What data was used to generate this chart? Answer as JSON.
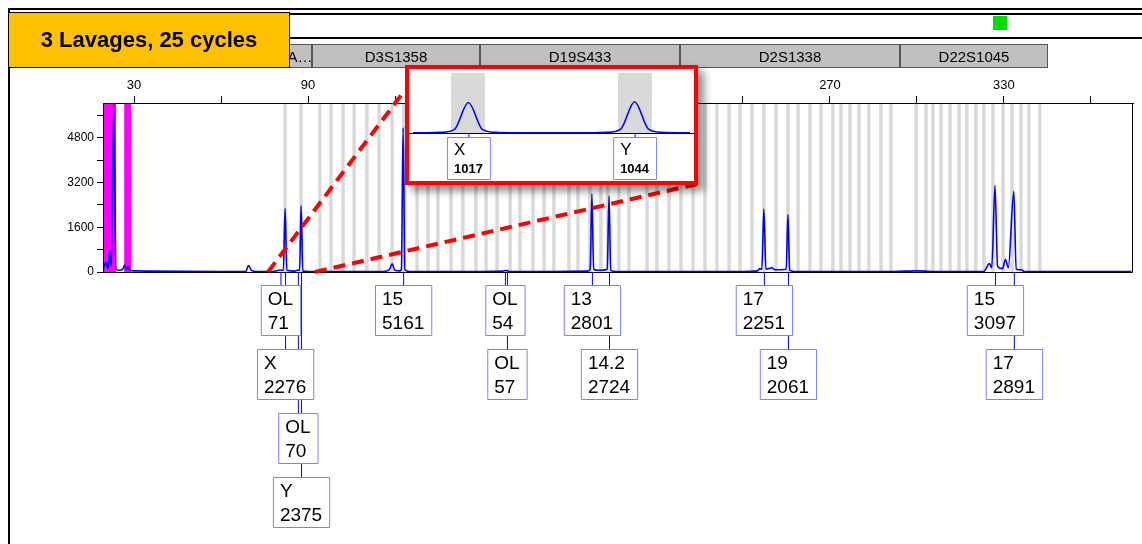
{
  "chart_data": [
    {
      "type": "line",
      "title": "3 Lavages, 25 cycles",
      "color": "#0000ff",
      "marker": "none",
      "annotations": [
        "A…",
        "D3S1358",
        "D19S433",
        "D2S1338",
        "D22S1045",
        {
          "text": "OL\n71",
          "x": 80.5,
          "y": 0
        },
        {
          "text": "X\n2276",
          "x": 82.1,
          "y": 0
        },
        {
          "text": "OL\n70",
          "x": 86.5,
          "y": 0
        },
        {
          "text": "Y\n2375",
          "x": 87.6,
          "y": 0
        },
        {
          "text": "15\n5161",
          "x": 122.8,
          "y": 0
        },
        {
          "text": "OL\n54",
          "x": 157.9,
          "y": 0
        },
        {
          "text": "OL\n57",
          "x": 158.6,
          "y": 0
        },
        {
          "text": "13\n2801",
          "x": 187.9,
          "y": 0
        },
        {
          "text": "14.2\n2724",
          "x": 193.8,
          "y": 0
        },
        {
          "text": "17\n2251",
          "x": 247.2,
          "y": 0
        },
        {
          "text": "19\n2061",
          "x": 255.5,
          "y": 0
        },
        {
          "text": "15\n3097",
          "x": 326.9,
          "y": 0
        },
        {
          "text": "17\n2891",
          "x": 333.4,
          "y": 0
        }
      ],
      "x": [
        19.4,
        20.3,
        21.0,
        21.6,
        22.2,
        23.0,
        23.8,
        25.0,
        26.2,
        26.8,
        27.4,
        28.0,
        28.6,
        30,
        35,
        60,
        68.5,
        69.5,
        70.5,
        72,
        78,
        80.5,
        81.5,
        82.1,
        82.7,
        85.5,
        86.5,
        87.1,
        87.6,
        88.2,
        90,
        116,
        118,
        119,
        120,
        121.5,
        122.2,
        122.8,
        123.4,
        125,
        150,
        157.3,
        157.9,
        158.3,
        158.6,
        159.2,
        175,
        186.5,
        187.3,
        187.9,
        188.5,
        190.5,
        193.2,
        193.8,
        194.4,
        196,
        240,
        245,
        245.8,
        246.5,
        247.2,
        247.9,
        250,
        251,
        254.9,
        255.5,
        256.1,
        258,
        292,
        300,
        305,
        323,
        325,
        325.8,
        326.9,
        327.8,
        329.5,
        330.5,
        331.5,
        333.4,
        334.2,
        336,
        337,
        374
      ],
      "values": [
        100,
        350,
        120,
        750,
        200,
        6000,
        100,
        60,
        120,
        250,
        80,
        200,
        60,
        40,
        30,
        20,
        20,
        230,
        60,
        20,
        20,
        71,
        60,
        2276,
        60,
        30,
        70,
        60,
        2375,
        40,
        20,
        20,
        80,
        290,
        60,
        40,
        80,
        5161,
        80,
        20,
        20,
        30,
        54,
        45,
        57,
        20,
        20,
        30,
        100,
        2801,
        100,
        60,
        100,
        2724,
        60,
        20,
        20,
        40,
        120,
        100,
        2251,
        100,
        150,
        80,
        100,
        2061,
        60,
        20,
        20,
        40,
        20,
        20,
        300,
        150,
        3097,
        200,
        120,
        450,
        150,
        2891,
        100,
        80,
        20,
        20
      ],
      "xlim": [
        19.3,
        374.5
      ],
      "xticks": [
        30,
        {
          "value": 60,
          "label": null
        },
        90,
        {
          "value": 120,
          "label": null
        },
        {
          "value": 150,
          "label": null
        },
        {
          "value": 180,
          "label": null
        },
        {
          "value": 210,
          "label": null
        },
        {
          "value": 240,
          "label": null
        },
        270,
        {
          "value": 300,
          "label": null
        },
        330,
        {
          "value": 360,
          "label": null
        }
      ],
      "ylim": [
        0,
        6050
      ],
      "yticks": [
        0,
        {
          "value": 800,
          "label": null
        },
        1600,
        {
          "value": 2400,
          "label": null
        },
        3200,
        {
          "value": 4000,
          "label": null
        },
        4800,
        {
          "value": 5600,
          "label": null
        }
      ],
      "bands": [
        {
          "axis": "x",
          "from": 19.3,
          "to": 23.8,
          "color": "#ff00ff"
        },
        {
          "axis": "x",
          "from": 26.6,
          "to": 29.0,
          "color": "#ff00ff"
        },
        {
          "axis": "x",
          "from": 81.5,
          "to": 82.7,
          "color": "#d9d9d9"
        },
        {
          "axis": "x",
          "from": 87.0,
          "to": 88.2,
          "color": "#d9d9d9"
        },
        {
          "axis": "x",
          "from": 93.5,
          "to": 94.7,
          "color": "#d9d9d9"
        },
        {
          "axis": "x",
          "from": 97.3,
          "to": 98.5,
          "color": "#d9d9d9"
        },
        {
          "axis": "x",
          "from": 101.5,
          "to": 102.7,
          "color": "#d9d9d9"
        },
        {
          "axis": "x",
          "from": 105.3,
          "to": 106.5,
          "color": "#d9d9d9"
        },
        {
          "axis": "x",
          "from": 109.7,
          "to": 110.9,
          "color": "#d9d9d9"
        },
        {
          "axis": "x",
          "from": 113.9,
          "to": 115.1,
          "color": "#d9d9d9"
        },
        {
          "axis": "x",
          "from": 118.4,
          "to": 119.6,
          "color": "#d9d9d9"
        },
        {
          "axis": "x",
          "from": 122.5,
          "to": 123.7,
          "color": "#d9d9d9"
        },
        {
          "axis": "x",
          "from": 127.0,
          "to": 128.2,
          "color": "#d9d9d9"
        },
        {
          "axis": "x",
          "from": 130.8,
          "to": 132.0,
          "color": "#d9d9d9"
        },
        {
          "axis": "x",
          "from": 134.2,
          "to": 135.4,
          "color": "#d9d9d9"
        },
        {
          "axis": "x",
          "from": 138.7,
          "to": 139.9,
          "color": "#d9d9d9"
        },
        {
          "axis": "x",
          "from": 142.8,
          "to": 144.0,
          "color": "#d9d9d9"
        },
        {
          "axis": "x",
          "from": 147.3,
          "to": 148.5,
          "color": "#d9d9d9"
        },
        {
          "axis": "x",
          "from": 150.8,
          "to": 152.0,
          "color": "#d9d9d9"
        },
        {
          "axis": "x",
          "from": 154.6,
          "to": 155.8,
          "color": "#d9d9d9"
        },
        {
          "axis": "x",
          "from": 159.1,
          "to": 160.3,
          "color": "#d9d9d9"
        },
        {
          "axis": "x",
          "from": 162.5,
          "to": 163.7,
          "color": "#d9d9d9"
        },
        {
          "axis": "x",
          "from": 167.0,
          "to": 168.2,
          "color": "#d9d9d9"
        },
        {
          "axis": "x",
          "from": 170.8,
          "to": 172.0,
          "color": "#d9d9d9"
        },
        {
          "axis": "x",
          "from": 174.2,
          "to": 175.4,
          "color": "#d9d9d9"
        },
        {
          "axis": "x",
          "from": 179.4,
          "to": 180.6,
          "color": "#d9d9d9"
        },
        {
          "axis": "x",
          "from": 182.5,
          "to": 183.7,
          "color": "#d9d9d9"
        },
        {
          "axis": "x",
          "from": 186.6,
          "to": 187.8,
          "color": "#d9d9d9"
        },
        {
          "axis": "x",
          "from": 190.4,
          "to": 191.6,
          "color": "#d9d9d9"
        },
        {
          "axis": "x",
          "from": 192.8,
          "to": 194.0,
          "color": "#d9d9d9"
        },
        {
          "axis": "x",
          "from": 196.6,
          "to": 197.8,
          "color": "#d9d9d9"
        },
        {
          "axis": "x",
          "from": 200.1,
          "to": 201.3,
          "color": "#d9d9d9"
        },
        {
          "axis": "x",
          "from": 206.3,
          "to": 207.5,
          "color": "#d9d9d9"
        },
        {
          "axis": "x",
          "from": 209.7,
          "to": 210.9,
          "color": "#d9d9d9"
        },
        {
          "axis": "x",
          "from": 213.9,
          "to": 215.1,
          "color": "#d9d9d9"
        },
        {
          "axis": "x",
          "from": 218.0,
          "to": 219.2,
          "color": "#d9d9d9"
        },
        {
          "axis": "x",
          "from": 222.2,
          "to": 223.4,
          "color": "#d9d9d9"
        },
        {
          "axis": "x",
          "from": 226.3,
          "to": 227.5,
          "color": "#d9d9d9"
        },
        {
          "axis": "x",
          "from": 230.4,
          "to": 231.6,
          "color": "#d9d9d9"
        },
        {
          "axis": "x",
          "from": 234.6,
          "to": 235.8,
          "color": "#d9d9d9"
        },
        {
          "axis": "x",
          "from": 238.4,
          "to": 239.6,
          "color": "#d9d9d9"
        },
        {
          "axis": "x",
          "from": 242.5,
          "to": 243.7,
          "color": "#d9d9d9"
        },
        {
          "axis": "x",
          "from": 246.6,
          "to": 247.8,
          "color": "#d9d9d9"
        },
        {
          "axis": "x",
          "from": 250.8,
          "to": 252.0,
          "color": "#d9d9d9"
        },
        {
          "axis": "x",
          "from": 254.9,
          "to": 256.1,
          "color": "#d9d9d9"
        },
        {
          "axis": "x",
          "from": 258.4,
          "to": 259.6,
          "color": "#d9d9d9"
        },
        {
          "axis": "x",
          "from": 262.5,
          "to": 263.7,
          "color": "#d9d9d9"
        },
        {
          "axis": "x",
          "from": 266.3,
          "to": 267.5,
          "color": "#d9d9d9"
        },
        {
          "axis": "x",
          "from": 270.4,
          "to": 271.6,
          "color": "#d9d9d9"
        },
        {
          "axis": "x",
          "from": 273.2,
          "to": 274.4,
          "color": "#d9d9d9"
        },
        {
          "axis": "x",
          "from": 276.3,
          "to": 277.5,
          "color": "#d9d9d9"
        },
        {
          "axis": "x",
          "from": 279.4,
          "to": 280.6,
          "color": "#d9d9d9"
        },
        {
          "axis": "x",
          "from": 282.8,
          "to": 284.0,
          "color": "#d9d9d9"
        },
        {
          "axis": "x",
          "from": 287.0,
          "to": 288.2,
          "color": "#d9d9d9"
        },
        {
          "axis": "x",
          "from": 290.4,
          "to": 291.6,
          "color": "#d9d9d9"
        },
        {
          "axis": "x",
          "from": 299.1,
          "to": 300.3,
          "color": "#d9d9d9"
        },
        {
          "axis": "x",
          "from": 302.5,
          "to": 303.7,
          "color": "#d9d9d9"
        },
        {
          "axis": "x",
          "from": 304.9,
          "to": 306.1,
          "color": "#d9d9d9"
        },
        {
          "axis": "x",
          "from": 307.7,
          "to": 308.9,
          "color": "#d9d9d9"
        },
        {
          "axis": "x",
          "from": 310.8,
          "to": 312.0,
          "color": "#d9d9d9"
        },
        {
          "axis": "x",
          "from": 313.9,
          "to": 315.1,
          "color": "#d9d9d9"
        },
        {
          "axis": "x",
          "from": 316.6,
          "to": 317.8,
          "color": "#d9d9d9"
        },
        {
          "axis": "x",
          "from": 319.7,
          "to": 320.9,
          "color": "#d9d9d9"
        },
        {
          "axis": "x",
          "from": 322.5,
          "to": 323.7,
          "color": "#d9d9d9"
        },
        {
          "axis": "x",
          "from": 325.6,
          "to": 326.8,
          "color": "#d9d9d9"
        },
        {
          "axis": "x",
          "from": 329.1,
          "to": 330.3,
          "color": "#d9d9d9"
        },
        {
          "axis": "x",
          "from": 332.2,
          "to": 333.4,
          "color": "#d9d9d9"
        },
        {
          "axis": "x",
          "from": 335.3,
          "to": 336.5,
          "color": "#d9d9d9"
        },
        {
          "axis": "x",
          "from": 338.0,
          "to": 339.2,
          "color": "#d9d9d9"
        },
        {
          "axis": "x",
          "from": 341.8,
          "to": 343.0,
          "color": "#d9d9d9"
        }
      ]
    },
    {
      "type": "line",
      "color": "#0000ff",
      "marker": "none",
      "categories": [
        null,
        null,
        null,
        null,
        null,
        null,
        null,
        null,
        null,
        null,
        null,
        null,
        null,
        null,
        null,
        null,
        null,
        null,
        null,
        null,
        null
      ],
      "values": [
        10,
        10,
        20,
        120,
        1017,
        120,
        20,
        10,
        10,
        10,
        10,
        10,
        10,
        10,
        20,
        130,
        1044,
        130,
        20,
        10,
        10
      ],
      "value_labels": [
        null,
        null,
        null,
        null,
        "X\n1017",
        null,
        null,
        null,
        null,
        null,
        null,
        null,
        null,
        null,
        null,
        null,
        "Y\n1044",
        null,
        null,
        null,
        null
      ]
    }
  ]
}
